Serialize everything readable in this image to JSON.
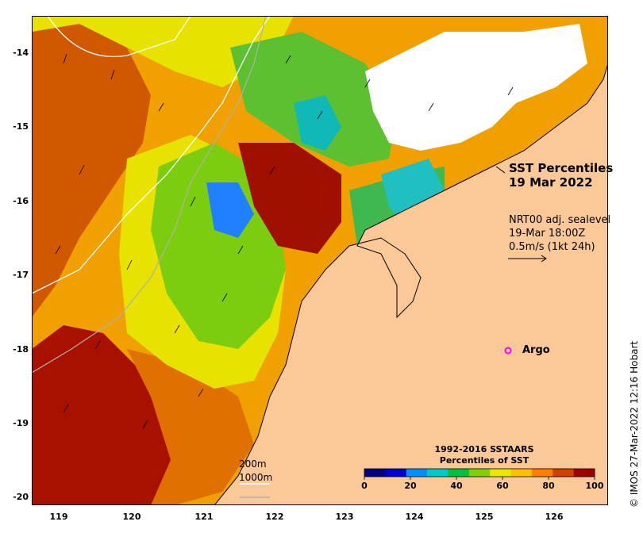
{
  "title": {
    "line1": "SST Percentiles",
    "line2": "19 Mar 2022"
  },
  "current_annotation": {
    "line1": "NRT00 adj. sealevel",
    "line2": "19-Mar 18:00Z",
    "line3": "0.5m/s (1kt 24h)"
  },
  "argo_label": "Argo",
  "colorbar": {
    "title_line1": "1992-2016 SSTAARS",
    "title_line2": "Percentiles of SST",
    "ticks": [
      "0",
      "20",
      "40",
      "60",
      "80",
      "100"
    ],
    "colors": [
      "#000080",
      "#0000d0",
      "#0090ff",
      "#00c8c8",
      "#00c040",
      "#7fd000",
      "#e8e800",
      "#ffc000",
      "#ff8000",
      "#d04000",
      "#a00000"
    ]
  },
  "depth_contours": {
    "shallow": "200m",
    "deep": "1000m"
  },
  "axes": {
    "x_ticks": [
      "119",
      "120",
      "121",
      "122",
      "123",
      "124",
      "125",
      "126"
    ],
    "y_ticks": [
      "-14",
      "-15",
      "-16",
      "-17",
      "-18",
      "-19",
      "-20"
    ]
  },
  "credit": "© IMOS 27-Mar-2022 12:16 Hobart",
  "colors": {
    "land": "#fbc898",
    "cloud": "#ffffff",
    "argo_marker": "#ff00ff"
  }
}
